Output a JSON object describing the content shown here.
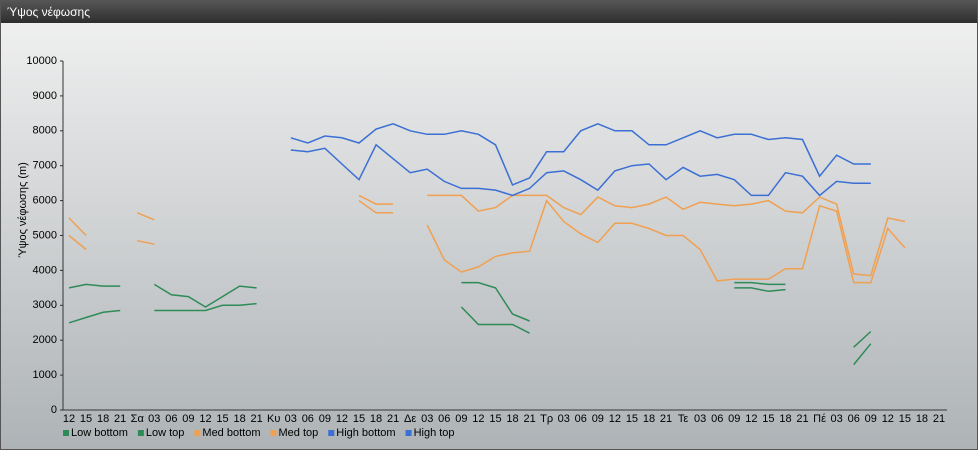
{
  "window_title": "Ύψος νέφωσης",
  "chart_data": {
    "type": "line",
    "y_label": "Ύψος νέφωσης (m)",
    "categories": [
      "12",
      "15",
      "18",
      "21",
      "Σα",
      "03",
      "06",
      "09",
      "12",
      "15",
      "18",
      "21",
      "Κυ",
      "03",
      "06",
      "09",
      "12",
      "15",
      "18",
      "21",
      "Δε",
      "03",
      "06",
      "09",
      "12",
      "15",
      "18",
      "21",
      "Τρ",
      "03",
      "06",
      "09",
      "12",
      "15",
      "18",
      "21",
      "Τε",
      "03",
      "06",
      "09",
      "12",
      "15",
      "18",
      "21",
      "Πέ",
      "03",
      "06",
      "09",
      "12",
      "15",
      "18",
      "21"
    ],
    "ylim": [
      0,
      10000
    ],
    "yticks": [
      0,
      1000,
      2000,
      3000,
      4000,
      5000,
      6000,
      7000,
      8000,
      9000,
      10000
    ],
    "series": [
      {
        "name": "Low bottom",
        "color": "#2e8b57",
        "values": [
          2500,
          2650,
          2800,
          2850,
          null,
          2850,
          2850,
          2850,
          2850,
          3000,
          3000,
          3050,
          null,
          null,
          null,
          null,
          null,
          null,
          null,
          null,
          null,
          null,
          null,
          2950,
          2450,
          2450,
          2450,
          2200,
          null,
          null,
          null,
          null,
          null,
          null,
          null,
          null,
          null,
          null,
          null,
          3500,
          3500,
          3400,
          3450,
          null,
          null,
          null,
          1300,
          1900,
          null,
          null,
          null,
          null
        ]
      },
      {
        "name": "Low top",
        "color": "#2e8b57",
        "values": [
          3500,
          3600,
          3550,
          3550,
          null,
          3600,
          3300,
          3250,
          2950,
          3250,
          3550,
          3500,
          null,
          null,
          null,
          null,
          null,
          null,
          null,
          null,
          null,
          null,
          null,
          3650,
          3650,
          3500,
          2750,
          2550,
          null,
          null,
          null,
          null,
          null,
          null,
          null,
          null,
          null,
          null,
          null,
          3650,
          3650,
          3600,
          3600,
          null,
          null,
          null,
          1800,
          2250,
          null,
          null,
          null,
          null
        ]
      },
      {
        "name": "Med bottom",
        "color": "#f0a050",
        "values": [
          5000,
          4600,
          null,
          null,
          4850,
          4750,
          null,
          null,
          null,
          null,
          null,
          null,
          null,
          null,
          null,
          null,
          null,
          6000,
          5650,
          5650,
          null,
          5300,
          4300,
          3950,
          4100,
          4400,
          4500,
          4550,
          6000,
          5400,
          5050,
          4800,
          5350,
          5350,
          5200,
          5000,
          5000,
          4600,
          3700,
          3750,
          3750,
          3750,
          4050,
          4050,
          5850,
          5700,
          3650,
          3650,
          5200,
          4650,
          null,
          null
        ]
      },
      {
        "name": "Med top",
        "color": "#f0a050",
        "values": [
          5500,
          5000,
          null,
          null,
          5650,
          5450,
          null,
          null,
          null,
          null,
          null,
          null,
          null,
          null,
          null,
          null,
          null,
          6150,
          5900,
          5900,
          null,
          6150,
          6150,
          6150,
          5700,
          5800,
          6150,
          6150,
          6150,
          5800,
          5600,
          6100,
          5850,
          5800,
          5900,
          6100,
          5750,
          5950,
          5900,
          5850,
          5900,
          6000,
          5700,
          5650,
          6100,
          5900,
          3900,
          3850,
          5500,
          5400,
          null,
          null
        ]
      },
      {
        "name": "High bottom",
        "color": "#3b6fd4",
        "values": [
          null,
          null,
          null,
          null,
          null,
          null,
          null,
          null,
          null,
          null,
          null,
          null,
          null,
          7450,
          7400,
          7500,
          7050,
          6600,
          7600,
          7200,
          6800,
          6900,
          6550,
          6350,
          6350,
          6300,
          6150,
          6350,
          6800,
          6850,
          6600,
          6300,
          6850,
          7000,
          7050,
          6600,
          6950,
          6700,
          6750,
          6600,
          6150,
          6150,
          6800,
          6700,
          6150,
          6550,
          6500,
          6500,
          null,
          null,
          null,
          null
        ]
      },
      {
        "name": "High top",
        "color": "#3b6fd4",
        "values": [
          null,
          null,
          null,
          null,
          null,
          null,
          null,
          null,
          null,
          null,
          null,
          null,
          null,
          7800,
          7650,
          7850,
          7800,
          7650,
          8050,
          8200,
          8000,
          7900,
          7900,
          8000,
          7900,
          7600,
          6450,
          6650,
          7400,
          7400,
          8000,
          8200,
          8000,
          8000,
          7600,
          7600,
          7800,
          8000,
          7800,
          7900,
          7900,
          7750,
          7800,
          7750,
          6700,
          7300,
          7050,
          7050,
          null,
          null,
          null,
          null
        ]
      }
    ]
  }
}
